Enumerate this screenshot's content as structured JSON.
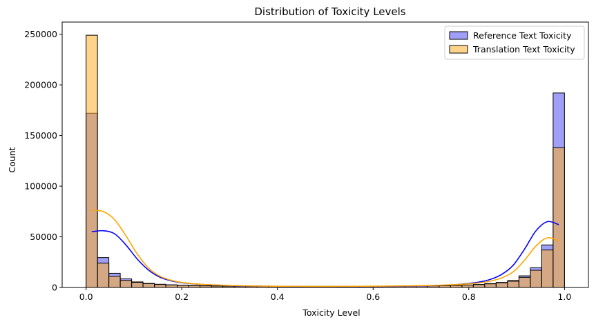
{
  "chart_data": {
    "type": "bar",
    "title": "Distribution of Toxicity Levels",
    "xlabel": "Toxicity Level",
    "ylabel": "Count",
    "xlim": [
      -0.05,
      1.05
    ],
    "ylim": [
      0,
      262000
    ],
    "x_ticks": [
      0.0,
      0.2,
      0.4,
      0.6,
      0.8,
      1.0
    ],
    "x_tick_labels": [
      "0.0",
      "0.2",
      "0.4",
      "0.6",
      "0.8",
      "1.0"
    ],
    "y_ticks": [
      0,
      50000,
      100000,
      150000,
      200000,
      250000
    ],
    "y_tick_labels": [
      "0",
      "50000",
      "100000",
      "150000",
      "200000",
      "250000"
    ],
    "bin_edges": [
      0.0,
      0.0238,
      0.0476,
      0.0714,
      0.0952,
      0.119,
      0.1429,
      0.1667,
      0.1905,
      0.2143,
      0.2381,
      0.2619,
      0.2857,
      0.3095,
      0.3333,
      0.3571,
      0.381,
      0.4048,
      0.4286,
      0.4524,
      0.4762,
      0.5,
      0.5238,
      0.5476,
      0.5714,
      0.5952,
      0.619,
      0.6429,
      0.6667,
      0.6905,
      0.7143,
      0.7381,
      0.7619,
      0.7857,
      0.8095,
      0.8333,
      0.8571,
      0.881,
      0.9048,
      0.9286,
      0.9524,
      0.9762,
      1.0
    ],
    "series": [
      {
        "name": "Reference Text Toxicity",
        "color": "#0000ff",
        "fill": "rgba(80,80,240,0.55)",
        "values": [
          172000,
          29500,
          14000,
          8500,
          5500,
          4000,
          3200,
          2600,
          2200,
          1900,
          1700,
          1500,
          1350,
          1250,
          1150,
          1100,
          1050,
          1000,
          980,
          960,
          950,
          950,
          960,
          980,
          1000,
          1050,
          1100,
          1150,
          1250,
          1350,
          1500,
          1700,
          2000,
          2400,
          3000,
          3800,
          5000,
          6800,
          11500,
          19500,
          42000,
          192000
        ],
        "kde": [
          55000,
          56000,
          53000,
          42000,
          28000,
          17000,
          10000,
          6500,
          4500,
          3500,
          2800,
          2300,
          1900,
          1600,
          1400,
          1250,
          1150,
          1050,
          1000,
          970,
          950,
          950,
          960,
          990,
          1030,
          1080,
          1150,
          1250,
          1400,
          1600,
          1900,
          2300,
          2900,
          3800,
          5300,
          8000,
          13000,
          22000,
          38000,
          56000,
          65000,
          62000
        ]
      },
      {
        "name": "Translation Text Toxicity",
        "color": "#ffa500",
        "fill": "rgba(255,175,40,0.55)",
        "values": [
          249000,
          24000,
          11000,
          7000,
          5000,
          3800,
          3000,
          2500,
          2100,
          1800,
          1600,
          1400,
          1300,
          1200,
          1100,
          1050,
          1000,
          980,
          970,
          960,
          960,
          970,
          990,
          1020,
          1060,
          1110,
          1170,
          1250,
          1350,
          1470,
          1620,
          1800,
          2050,
          2400,
          2900,
          3600,
          4600,
          6200,
          10000,
          17000,
          37000,
          138000
        ],
        "kde": [
          76000,
          75000,
          67000,
          51000,
          33000,
          19000,
          11000,
          7000,
          4800,
          3600,
          2900,
          2400,
          2000,
          1700,
          1500,
          1350,
          1250,
          1150,
          1100,
          1070,
          1060,
          1070,
          1100,
          1150,
          1210,
          1280,
          1370,
          1480,
          1620,
          1800,
          2050,
          2400,
          2850,
          3500,
          4500,
          6200,
          9500,
          15500,
          27000,
          41000,
          49000,
          46000
        ]
      }
    ],
    "legend_position": "top-right",
    "grid": false
  }
}
